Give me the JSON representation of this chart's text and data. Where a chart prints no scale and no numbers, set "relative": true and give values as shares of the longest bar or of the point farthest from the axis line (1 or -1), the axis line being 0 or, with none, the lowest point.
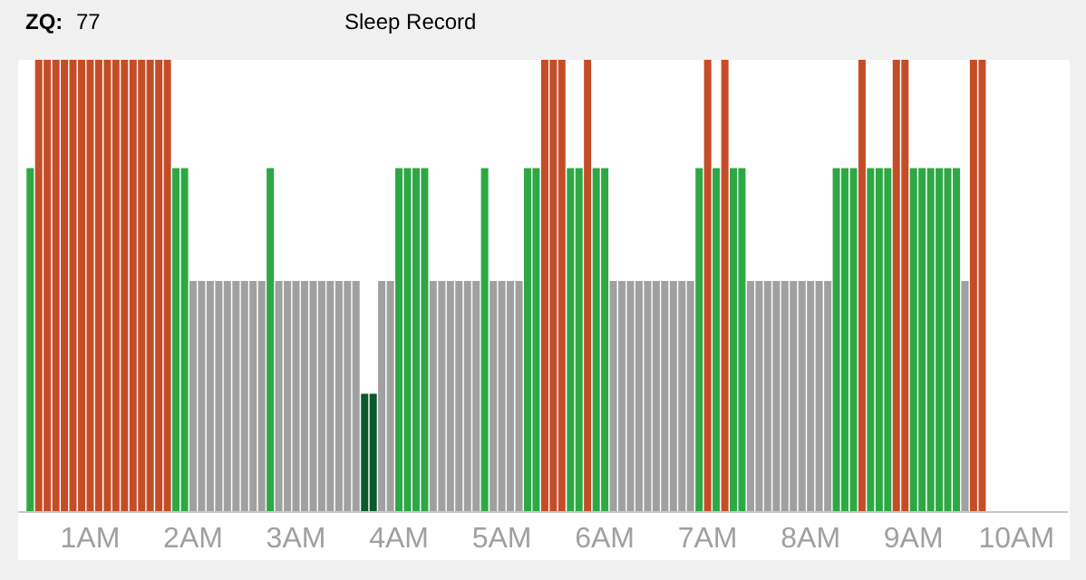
{
  "chart_data": {
    "type": "bar",
    "title": "Sleep Record",
    "annotations": [
      "ZQ:",
      "77"
    ],
    "relative": true,
    "tick_labels": "x",
    "grid": false,
    "x": [
      0.417,
      0.5,
      0.583,
      0.667,
      0.75,
      0.833,
      0.917,
      1,
      1.083,
      1.167,
      1.25,
      1.333,
      1.417,
      1.5,
      1.583,
      1.667,
      1.75,
      1.833,
      1.917,
      2,
      2.083,
      2.167,
      2.25,
      2.333,
      2.417,
      2.5,
      2.583,
      2.667,
      2.75,
      2.833,
      2.917,
      3,
      3.083,
      3.167,
      3.25,
      3.333,
      3.417,
      3.5,
      3.583,
      3.667,
      3.75,
      3.833,
      3.917,
      4,
      4.083,
      4.167,
      4.25,
      4.333,
      4.417,
      4.5,
      4.583,
      4.667,
      4.75,
      4.833,
      4.917,
      5,
      5.083,
      5.167,
      5.25,
      5.333,
      5.417,
      5.5,
      5.583,
      5.667,
      5.75,
      5.833,
      5.917,
      6,
      6.083,
      6.167,
      6.25,
      6.333,
      6.417,
      6.5,
      6.583,
      6.667,
      6.75,
      6.833,
      6.917,
      7,
      7.083,
      7.167,
      7.25,
      7.333,
      7.417,
      7.5,
      7.583,
      7.667,
      7.75,
      7.833,
      7.917,
      8,
      8.083,
      8.167,
      8.25,
      8.333,
      8.417,
      8.5,
      8.583,
      8.667,
      8.75,
      8.833,
      8.917,
      9,
      9.083,
      9.167,
      9.25,
      9.333,
      9.417,
      9.5,
      9.583,
      9.667
    ],
    "xlim": [
      0.3,
      10.5
    ],
    "xticks": [
      {
        "value": 1,
        "label": "1AM"
      },
      {
        "value": 2,
        "label": "2AM"
      },
      {
        "value": 3,
        "label": "3AM"
      },
      {
        "value": 4,
        "label": "4AM"
      },
      {
        "value": 5,
        "label": "5AM"
      },
      {
        "value": 6,
        "label": "6AM"
      },
      {
        "value": 7,
        "label": "7AM"
      },
      {
        "value": 8,
        "label": "8AM"
      },
      {
        "value": 9,
        "label": "9AM"
      },
      {
        "value": 10,
        "label": "10AM"
      }
    ],
    "values": [
      0.76,
      1,
      1,
      1,
      1,
      1,
      1,
      1,
      1,
      1,
      1,
      1,
      1,
      1,
      1,
      1,
      1,
      0.76,
      0.76,
      0.51,
      0.51,
      0.51,
      0.51,
      0.51,
      0.51,
      0.51,
      0.51,
      0.51,
      0.76,
      0.51,
      0.51,
      0.51,
      0.51,
      0.51,
      0.51,
      0.51,
      0.51,
      0.51,
      0.51,
      0.26,
      0.26,
      0.51,
      0.51,
      0.76,
      0.76,
      0.76,
      0.76,
      0.51,
      0.51,
      0.51,
      0.51,
      0.51,
      0.51,
      0.76,
      0.51,
      0.51,
      0.51,
      0.51,
      0.76,
      0.76,
      1,
      1,
      1,
      0.76,
      0.76,
      1,
      0.76,
      0.76,
      0.51,
      0.51,
      0.51,
      0.51,
      0.51,
      0.51,
      0.51,
      0.51,
      0.51,
      0.51,
      0.76,
      1,
      0.76,
      1,
      0.76,
      0.76,
      0.51,
      0.51,
      0.51,
      0.51,
      0.51,
      0.51,
      0.51,
      0.51,
      0.51,
      0.51,
      0.76,
      0.76,
      0.76,
      1,
      0.76,
      0.76,
      0.76,
      1,
      1,
      0.76,
      0.76,
      0.76,
      0.76,
      0.76,
      0.76,
      0.51,
      1,
      1
    ],
    "colors": [
      "#2ea844",
      "#c44d27",
      "#c44d27",
      "#c44d27",
      "#c44d27",
      "#c44d27",
      "#c44d27",
      "#c44d27",
      "#c44d27",
      "#c44d27",
      "#c44d27",
      "#c44d27",
      "#c44d27",
      "#c44d27",
      "#c44d27",
      "#c44d27",
      "#c44d27",
      "#2ea844",
      "#2ea844",
      "#a0a0a0",
      "#a0a0a0",
      "#a0a0a0",
      "#a0a0a0",
      "#a0a0a0",
      "#a0a0a0",
      "#a0a0a0",
      "#a0a0a0",
      "#a0a0a0",
      "#2ea844",
      "#a0a0a0",
      "#a0a0a0",
      "#a0a0a0",
      "#a0a0a0",
      "#a0a0a0",
      "#a0a0a0",
      "#a0a0a0",
      "#a0a0a0",
      "#a0a0a0",
      "#a0a0a0",
      "#0b5a2b",
      "#0b5a2b",
      "#a0a0a0",
      "#a0a0a0",
      "#2ea844",
      "#2ea844",
      "#2ea844",
      "#2ea844",
      "#a0a0a0",
      "#a0a0a0",
      "#a0a0a0",
      "#a0a0a0",
      "#a0a0a0",
      "#a0a0a0",
      "#2ea844",
      "#a0a0a0",
      "#a0a0a0",
      "#a0a0a0",
      "#a0a0a0",
      "#2ea844",
      "#2ea844",
      "#c44d27",
      "#c44d27",
      "#c44d27",
      "#2ea844",
      "#2ea844",
      "#c44d27",
      "#2ea844",
      "#2ea844",
      "#a0a0a0",
      "#a0a0a0",
      "#a0a0a0",
      "#a0a0a0",
      "#a0a0a0",
      "#a0a0a0",
      "#a0a0a0",
      "#a0a0a0",
      "#a0a0a0",
      "#a0a0a0",
      "#2ea844",
      "#c44d27",
      "#2ea844",
      "#c44d27",
      "#2ea844",
      "#2ea844",
      "#a0a0a0",
      "#a0a0a0",
      "#a0a0a0",
      "#a0a0a0",
      "#a0a0a0",
      "#a0a0a0",
      "#a0a0a0",
      "#a0a0a0",
      "#a0a0a0",
      "#a0a0a0",
      "#2ea844",
      "#2ea844",
      "#2ea844",
      "#c44d27",
      "#2ea844",
      "#2ea844",
      "#2ea844",
      "#c44d27",
      "#c44d27",
      "#2ea844",
      "#2ea844",
      "#2ea844",
      "#2ea844",
      "#2ea844",
      "#2ea844",
      "#a0a0a0",
      "#c44d27",
      "#c44d27"
    ]
  }
}
